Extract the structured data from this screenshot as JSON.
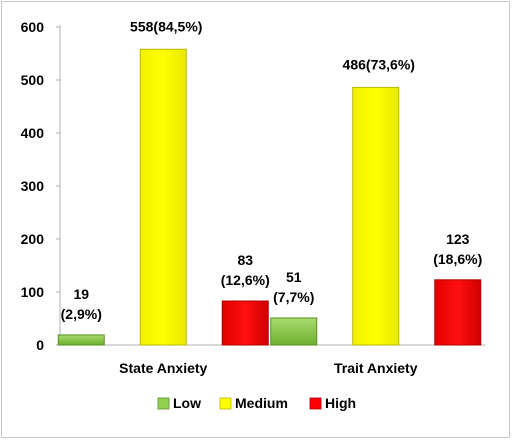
{
  "chart_data": {
    "type": "bar",
    "title": "",
    "xlabel": "",
    "ylabel": "",
    "categories": [
      "State Anxiety",
      "Trait Anxiety"
    ],
    "ylim": [
      0,
      600
    ],
    "yticks": [
      0,
      100,
      200,
      300,
      400,
      500,
      600
    ],
    "grid": false,
    "legend_position": "bottom",
    "series": [
      {
        "name": "Low",
        "color": "#92d050",
        "values": [
          19,
          51
        ],
        "labels": [
          [
            "19",
            "(2,9%)"
          ],
          [
            "51",
            "(7,7%)"
          ]
        ]
      },
      {
        "name": "Medium",
        "color": "#ffff00",
        "values": [
          558,
          486
        ],
        "labels": [
          [
            "558(84,5%)"
          ],
          [
            "486(73,6%)"
          ]
        ]
      },
      {
        "name": "High",
        "color": "#ff0000",
        "values": [
          83,
          123
        ],
        "labels": [
          [
            "83",
            "(12,6%)"
          ],
          [
            "123",
            "(18,6%)"
          ]
        ]
      }
    ]
  }
}
